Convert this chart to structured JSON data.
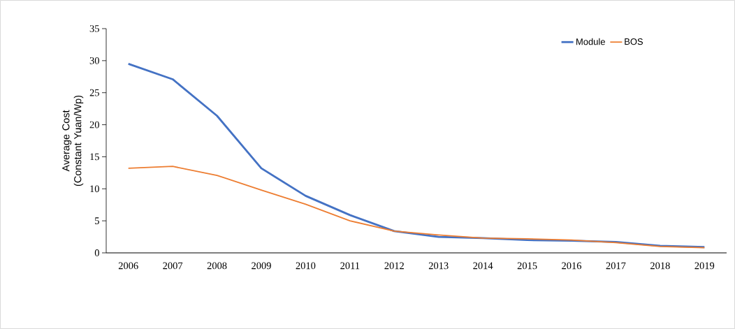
{
  "chart_data": {
    "type": "line",
    "ylabel": "Average Cost (Constant Yuan/Wp)",
    "categories": [
      "2006",
      "2007",
      "2008",
      "2009",
      "2010",
      "2011",
      "2012",
      "2013",
      "2014",
      "2015",
      "2016",
      "2017",
      "2018",
      "2019"
    ],
    "series": [
      {
        "name": "Module",
        "color": "#4472c4",
        "values": [
          29.5,
          27.1,
          21.4,
          13.2,
          8.9,
          5.9,
          3.4,
          2.5,
          2.3,
          2.0,
          1.9,
          1.7,
          1.1,
          0.9
        ]
      },
      {
        "name": "BOS",
        "color": "#ed7d31",
        "values": [
          13.2,
          13.5,
          12.1,
          9.8,
          7.6,
          5.0,
          3.4,
          2.8,
          2.3,
          2.2,
          2.0,
          1.6,
          1.0,
          0.8
        ]
      }
    ],
    "ylim": [
      0,
      35
    ],
    "yticks": [
      0,
      5,
      10,
      15,
      20,
      25,
      30,
      35
    ],
    "grid": false,
    "legend": "top right",
    "marker": "none",
    "line_style": "solid"
  }
}
